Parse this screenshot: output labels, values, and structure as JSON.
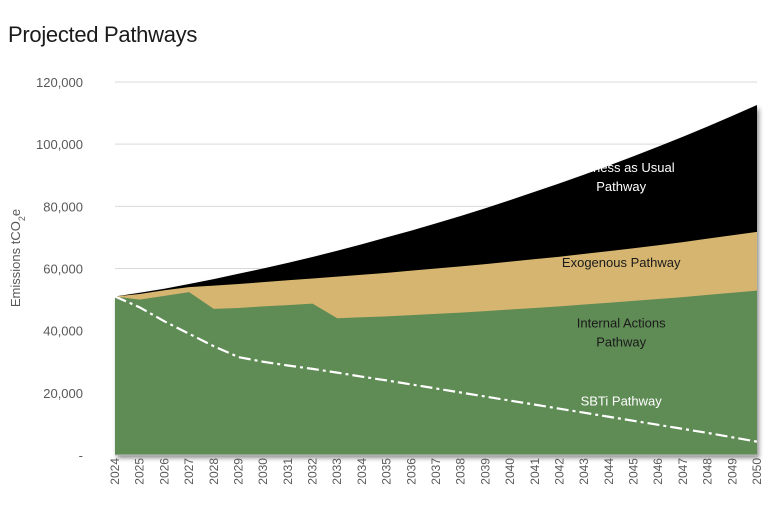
{
  "chart_data": {
    "type": "area",
    "title": "Projected Pathways",
    "ylabel": "Emissions tCO2e",
    "ylabel_parts": {
      "main": "Emissions tCO",
      "sub": "2",
      "tail": "e"
    },
    "xlabel": "",
    "ylim": [
      0,
      120000
    ],
    "y_ticks": [
      0,
      20000,
      40000,
      60000,
      80000,
      100000,
      120000
    ],
    "y_tick_labels": [
      "-",
      "20,000",
      "40,000",
      "60,000",
      "80,000",
      "100,000",
      "120,000"
    ],
    "grid": true,
    "x": [
      "2024",
      "2025",
      "2026",
      "2027",
      "2028",
      "2029",
      "2030",
      "2031",
      "2032",
      "2033",
      "2034",
      "2035",
      "2036",
      "2037",
      "2038",
      "2039",
      "2040",
      "2041",
      "2042",
      "2043",
      "2044",
      "2045",
      "2046",
      "2047",
      "2048",
      "2049",
      "2050"
    ],
    "series": [
      {
        "name": "Business as Usual Pathway",
        "label_lines": [
          "Business as Usual",
          "Pathway"
        ],
        "kind": "area",
        "color": "#000000",
        "label_color": "#ffffff",
        "values": [
          51000,
          52200,
          53500,
          55000,
          56600,
          58300,
          60000,
          61800,
          63700,
          65700,
          67800,
          70000,
          72200,
          74500,
          76900,
          79400,
          82000,
          84700,
          87400,
          90200,
          93100,
          96100,
          99200,
          102400,
          105700,
          109100,
          112600
        ]
      },
      {
        "name": "Exogenous Pathway",
        "label_lines": [
          "Exogenous Pathway"
        ],
        "kind": "area",
        "color": "#d6b56f",
        "label_color": "#1a1a1a",
        "values": [
          51000,
          51800,
          53000,
          54000,
          54500,
          55000,
          55600,
          56200,
          56800,
          57400,
          58000,
          58600,
          59300,
          60000,
          60700,
          61400,
          62200,
          63000,
          63800,
          64700,
          65600,
          66500,
          67500,
          68500,
          69600,
          70700,
          71800
        ]
      },
      {
        "name": "Internal Actions Pathway",
        "label_lines": [
          "Internal Actions",
          "Pathway"
        ],
        "kind": "area",
        "color": "#5f8b55",
        "label_color": "#1a1a1a",
        "values": [
          51000,
          50000,
          51200,
          52400,
          47000,
          47300,
          47800,
          48200,
          48700,
          44000,
          44300,
          44600,
          45000,
          45400,
          45800,
          46300,
          46800,
          47300,
          47800,
          48400,
          49000,
          49600,
          50200,
          50800,
          51500,
          52200,
          52900
        ]
      },
      {
        "name": "SBTi Pathway",
        "label_lines": [
          "SBTi Pathway"
        ],
        "kind": "line",
        "color": "#ffffff",
        "label_color": "#ffffff",
        "values": [
          51000,
          47500,
          43000,
          39000,
          35000,
          31500,
          30000,
          28800,
          27700,
          26500,
          25200,
          24000,
          22700,
          21400,
          20100,
          18800,
          17500,
          16200,
          14900,
          13600,
          12300,
          11000,
          9700,
          8400,
          7100,
          5700,
          4300
        ]
      }
    ]
  }
}
